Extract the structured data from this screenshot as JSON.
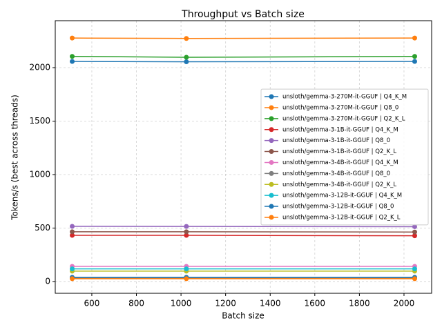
{
  "chart_data": {
    "type": "line",
    "title": "Throughput vs Batch size",
    "x_label": "Batch size",
    "y_label": "Tokens/s (best across threads)",
    "x": [
      512,
      1024,
      2048
    ],
    "series": [
      {
        "name": "unsloth/gemma-3-270M-it-GGUF | Q4_K_M",
        "color": "#1f77b4",
        "values": [
          2058,
          2055,
          2058
        ]
      },
      {
        "name": "unsloth/gemma-3-270M-it-GGUF | Q8_0",
        "color": "#ff7f0e",
        "values": [
          2277,
          2273,
          2277
        ]
      },
      {
        "name": "unsloth/gemma-3-270M-it-GGUF | Q2_K_L",
        "color": "#2ca02c",
        "values": [
          2105,
          2097,
          2105
        ]
      },
      {
        "name": "unsloth/gemma-3-1B-it-GGUF | Q4_K_M",
        "color": "#d62728",
        "values": [
          432,
          432,
          428
        ]
      },
      {
        "name": "unsloth/gemma-3-1B-it-GGUF | Q8_0",
        "color": "#9467bd",
        "values": [
          516,
          515,
          513
        ]
      },
      {
        "name": "unsloth/gemma-3-1B-it-GGUF | Q2_K_L",
        "color": "#8c564b",
        "values": [
          465,
          465,
          463
        ]
      },
      {
        "name": "unsloth/gemma-3-4B-it-GGUF | Q4_K_M",
        "color": "#e377c2",
        "values": [
          142,
          142,
          142
        ]
      },
      {
        "name": "unsloth/gemma-3-4B-it-GGUF | Q8_0",
        "color": "#7f7f7f",
        "values": [
          32,
          32,
          32
        ]
      },
      {
        "name": "unsloth/gemma-3-4B-it-GGUF | Q2_K_L",
        "color": "#bcbd22",
        "values": [
          97,
          97,
          97
        ]
      },
      {
        "name": "unsloth/gemma-3-12B-it-GGUF | Q4_K_M",
        "color": "#17becf",
        "values": [
          118,
          118,
          118
        ]
      },
      {
        "name": "unsloth/gemma-3-12B-it-GGUF | Q8_0",
        "color": "#1f77b4",
        "values": [
          39,
          39,
          39
        ]
      },
      {
        "name": "unsloth/gemma-3-12B-it-GGUF | Q2_K_L",
        "color": "#ff7f0e",
        "values": [
          26,
          26,
          26
        ]
      }
    ],
    "xlim": [
      436,
      2124
    ],
    "ylim": [
      -110,
      2439
    ],
    "xticks": [
      600,
      800,
      1000,
      1200,
      1400,
      1600,
      1800,
      2000
    ],
    "yticks": [
      0,
      500,
      1000,
      1500,
      2000
    ],
    "grid": true,
    "legend": "center right"
  }
}
